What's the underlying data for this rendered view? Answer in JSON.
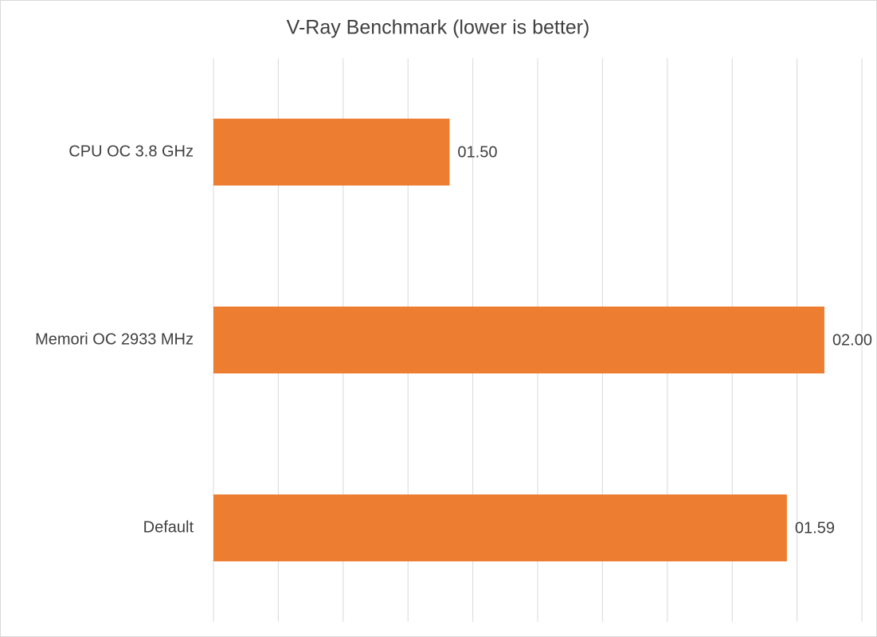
{
  "chart_data": {
    "type": "hbar",
    "title": "V-Ray Benchmark (lower is better)",
    "categories": [
      "CPU OC 3.8 GHz",
      "Memori OC 2933 MHz",
      "Default"
    ],
    "values": [
      110,
      120,
      119
    ],
    "value_labels": [
      "01.50",
      "02.00",
      "01.59"
    ],
    "color": "#ed7d31",
    "xlim": [
      103.7,
      121
    ],
    "xticks": [
      103.7,
      105.43,
      107.16,
      108.89,
      110.62,
      112.35,
      114.08,
      115.81,
      117.54,
      119.27,
      121
    ],
    "grid": true
  }
}
